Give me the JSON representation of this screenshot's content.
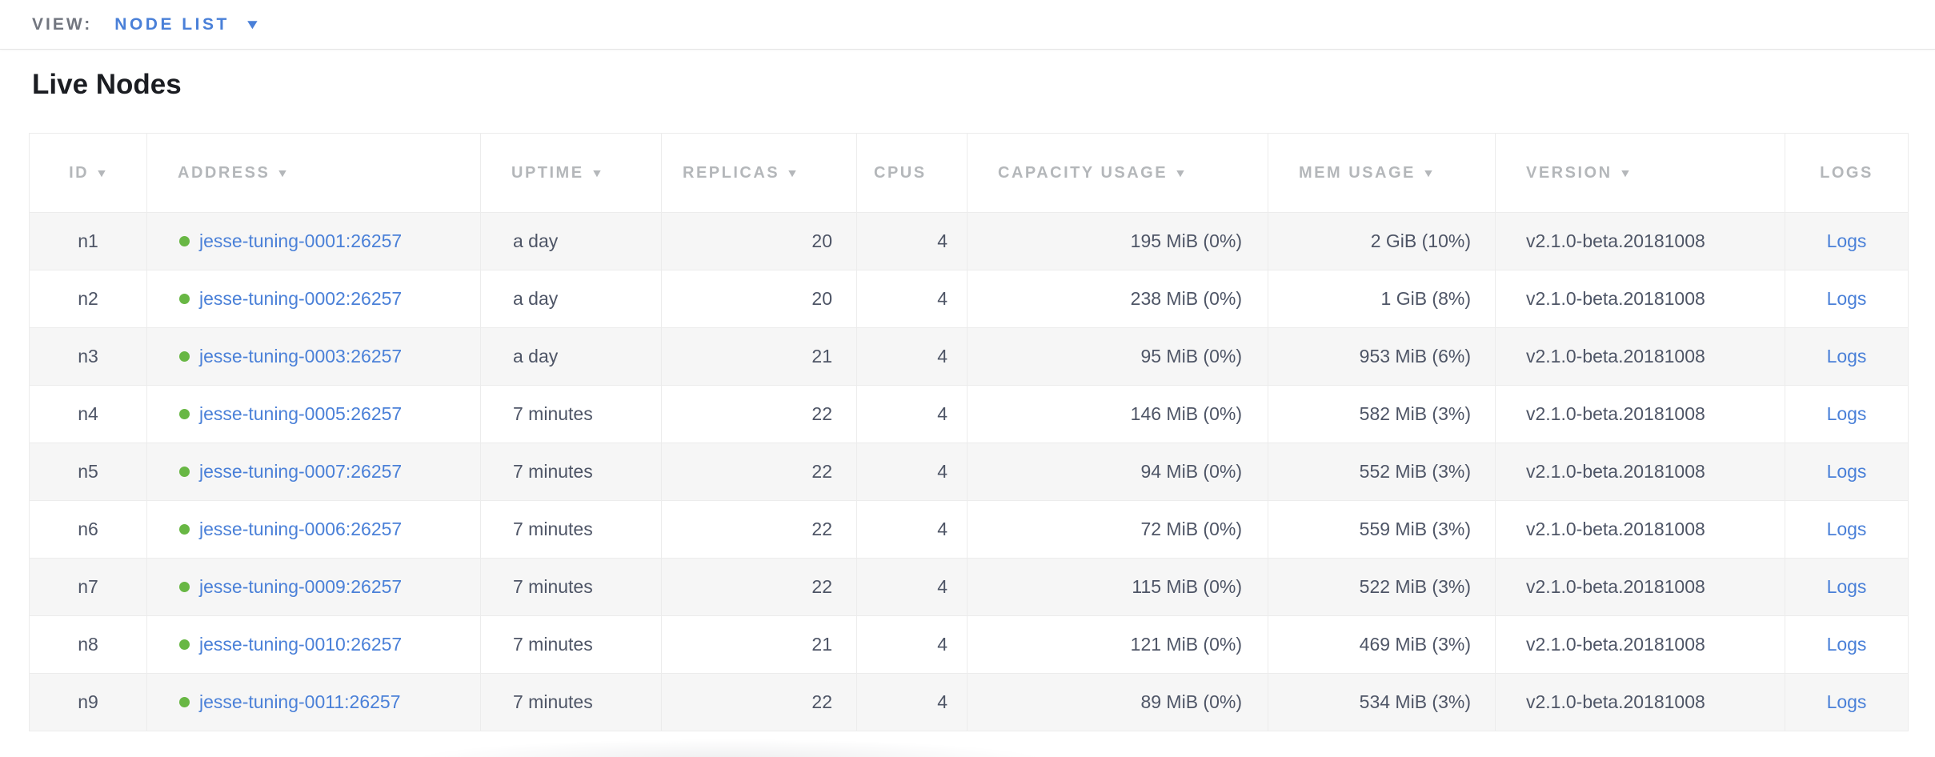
{
  "view_bar": {
    "label": "VIEW:",
    "selected": "NODE LIST"
  },
  "page": {
    "title": "Live Nodes"
  },
  "icons": {
    "sort_desc": "▼",
    "dropdown_caret": "▼"
  },
  "colors": {
    "link_blue": "#4a80d8",
    "live_status_green": "#68b744",
    "header_gray": "#b4b7ba",
    "cell_text": "#4e5566",
    "row_stripe": "#f6f6f6"
  },
  "table": {
    "columns": [
      {
        "key": "id",
        "label": "ID",
        "sortable": true
      },
      {
        "key": "address",
        "label": "ADDRESS",
        "sortable": true
      },
      {
        "key": "uptime",
        "label": "UPTIME",
        "sortable": true
      },
      {
        "key": "replicas",
        "label": "REPLICAS",
        "sortable": true
      },
      {
        "key": "cpus",
        "label": "CPUS",
        "sortable": false
      },
      {
        "key": "capacity",
        "label": "CAPACITY USAGE",
        "sortable": true
      },
      {
        "key": "mem",
        "label": "MEM USAGE",
        "sortable": true
      },
      {
        "key": "version",
        "label": "VERSION",
        "sortable": true
      },
      {
        "key": "logs",
        "label": "LOGS",
        "sortable": false
      }
    ],
    "rows": [
      {
        "id": "n1",
        "status": "live",
        "address": "jesse-tuning-0001:26257",
        "uptime": "a day",
        "replicas": "20",
        "cpus": "4",
        "capacity": "195 MiB (0%)",
        "mem": "2 GiB (10%)",
        "version": "v2.1.0-beta.20181008",
        "logs": "Logs"
      },
      {
        "id": "n2",
        "status": "live",
        "address": "jesse-tuning-0002:26257",
        "uptime": "a day",
        "replicas": "20",
        "cpus": "4",
        "capacity": "238 MiB (0%)",
        "mem": "1 GiB (8%)",
        "version": "v2.1.0-beta.20181008",
        "logs": "Logs"
      },
      {
        "id": "n3",
        "status": "live",
        "address": "jesse-tuning-0003:26257",
        "uptime": "a day",
        "replicas": "21",
        "cpus": "4",
        "capacity": "95 MiB (0%)",
        "mem": "953 MiB (6%)",
        "version": "v2.1.0-beta.20181008",
        "logs": "Logs"
      },
      {
        "id": "n4",
        "status": "live",
        "address": "jesse-tuning-0005:26257",
        "uptime": "7 minutes",
        "replicas": "22",
        "cpus": "4",
        "capacity": "146 MiB (0%)",
        "mem": "582 MiB (3%)",
        "version": "v2.1.0-beta.20181008",
        "logs": "Logs"
      },
      {
        "id": "n5",
        "status": "live",
        "address": "jesse-tuning-0007:26257",
        "uptime": "7 minutes",
        "replicas": "22",
        "cpus": "4",
        "capacity": "94 MiB (0%)",
        "mem": "552 MiB (3%)",
        "version": "v2.1.0-beta.20181008",
        "logs": "Logs"
      },
      {
        "id": "n6",
        "status": "live",
        "address": "jesse-tuning-0006:26257",
        "uptime": "7 minutes",
        "replicas": "22",
        "cpus": "4",
        "capacity": "72 MiB (0%)",
        "mem": "559 MiB (3%)",
        "version": "v2.1.0-beta.20181008",
        "logs": "Logs"
      },
      {
        "id": "n7",
        "status": "live",
        "address": "jesse-tuning-0009:26257",
        "uptime": "7 minutes",
        "replicas": "22",
        "cpus": "4",
        "capacity": "115 MiB (0%)",
        "mem": "522 MiB (3%)",
        "version": "v2.1.0-beta.20181008",
        "logs": "Logs"
      },
      {
        "id": "n8",
        "status": "live",
        "address": "jesse-tuning-0010:26257",
        "uptime": "7 minutes",
        "replicas": "21",
        "cpus": "4",
        "capacity": "121 MiB (0%)",
        "mem": "469 MiB (3%)",
        "version": "v2.1.0-beta.20181008",
        "logs": "Logs"
      },
      {
        "id": "n9",
        "status": "live",
        "address": "jesse-tuning-0011:26257",
        "uptime": "7 minutes",
        "replicas": "22",
        "cpus": "4",
        "capacity": "89 MiB (0%)",
        "mem": "534 MiB (3%)",
        "version": "v2.1.0-beta.20181008",
        "logs": "Logs"
      }
    ]
  }
}
